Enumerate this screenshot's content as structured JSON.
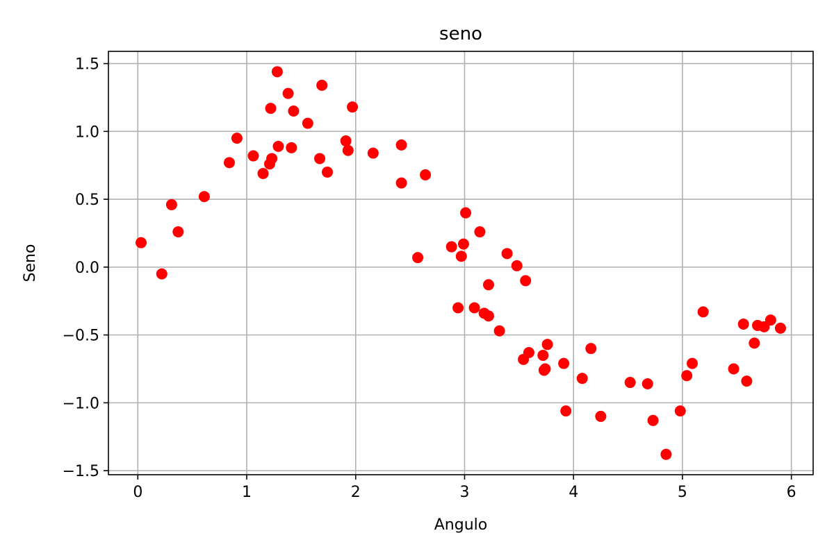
{
  "chart_data": {
    "type": "scatter",
    "title": "seno",
    "xlabel": "Angulo",
    "ylabel": "Seno",
    "xlim": [
      -0.27,
      6.2
    ],
    "ylim": [
      -1.53,
      1.59
    ],
    "xticks": [
      0,
      1,
      2,
      3,
      4,
      5,
      6
    ],
    "yticks": [
      -1.5,
      -1.0,
      -0.5,
      0.0,
      0.5,
      1.0,
      1.5
    ],
    "xtick_labels": [
      "0",
      "1",
      "2",
      "3",
      "4",
      "5",
      "6"
    ],
    "ytick_labels": [
      "−1.5",
      "−1.0",
      "−0.5",
      "0.0",
      "0.5",
      "1.0",
      "1.5"
    ],
    "grid": true,
    "marker_color": "#ff0000",
    "series": [
      {
        "points": [
          [
            0.03,
            0.18
          ],
          [
            0.22,
            -0.05
          ],
          [
            0.31,
            0.46
          ],
          [
            0.37,
            0.26
          ],
          [
            0.61,
            0.52
          ],
          [
            0.84,
            0.77
          ],
          [
            0.91,
            0.95
          ],
          [
            1.06,
            0.82
          ],
          [
            1.15,
            0.69
          ],
          [
            1.21,
            0.76
          ],
          [
            1.22,
            1.17
          ],
          [
            1.23,
            0.8
          ],
          [
            1.28,
            1.44
          ],
          [
            1.29,
            0.89
          ],
          [
            1.38,
            1.28
          ],
          [
            1.41,
            0.88
          ],
          [
            1.43,
            1.15
          ],
          [
            1.56,
            1.06
          ],
          [
            1.67,
            0.8
          ],
          [
            1.69,
            1.34
          ],
          [
            1.74,
            0.7
          ],
          [
            1.91,
            0.93
          ],
          [
            1.93,
            0.86
          ],
          [
            1.97,
            1.18
          ],
          [
            2.16,
            0.84
          ],
          [
            2.42,
            0.62
          ],
          [
            2.42,
            0.9
          ],
          [
            2.57,
            0.07
          ],
          [
            2.64,
            0.68
          ],
          [
            2.88,
            0.15
          ],
          [
            2.94,
            -0.3
          ],
          [
            2.97,
            0.08
          ],
          [
            2.99,
            0.17
          ],
          [
            3.01,
            0.4
          ],
          [
            3.09,
            -0.3
          ],
          [
            3.14,
            0.26
          ],
          [
            3.18,
            -0.34
          ],
          [
            3.22,
            -0.36
          ],
          [
            3.22,
            -0.13
          ],
          [
            3.32,
            -0.47
          ],
          [
            3.39,
            0.1
          ],
          [
            3.48,
            0.01
          ],
          [
            3.54,
            -0.68
          ],
          [
            3.56,
            -0.1
          ],
          [
            3.59,
            -0.63
          ],
          [
            3.72,
            -0.65
          ],
          [
            3.73,
            -0.76
          ],
          [
            3.74,
            -0.75
          ],
          [
            3.76,
            -0.57
          ],
          [
            3.91,
            -0.71
          ],
          [
            3.93,
            -1.06
          ],
          [
            4.08,
            -0.82
          ],
          [
            4.16,
            -0.6
          ],
          [
            4.25,
            -1.1
          ],
          [
            4.52,
            -0.85
          ],
          [
            4.68,
            -0.86
          ],
          [
            4.73,
            -1.13
          ],
          [
            4.85,
            -1.38
          ],
          [
            4.98,
            -1.06
          ],
          [
            5.04,
            -0.8
          ],
          [
            5.09,
            -0.71
          ],
          [
            5.19,
            -0.33
          ],
          [
            5.47,
            -0.75
          ],
          [
            5.56,
            -0.42
          ],
          [
            5.59,
            -0.84
          ],
          [
            5.66,
            -0.56
          ],
          [
            5.69,
            -0.43
          ],
          [
            5.75,
            -0.44
          ],
          [
            5.81,
            -0.39
          ],
          [
            5.9,
            -0.45
          ]
        ]
      }
    ]
  }
}
